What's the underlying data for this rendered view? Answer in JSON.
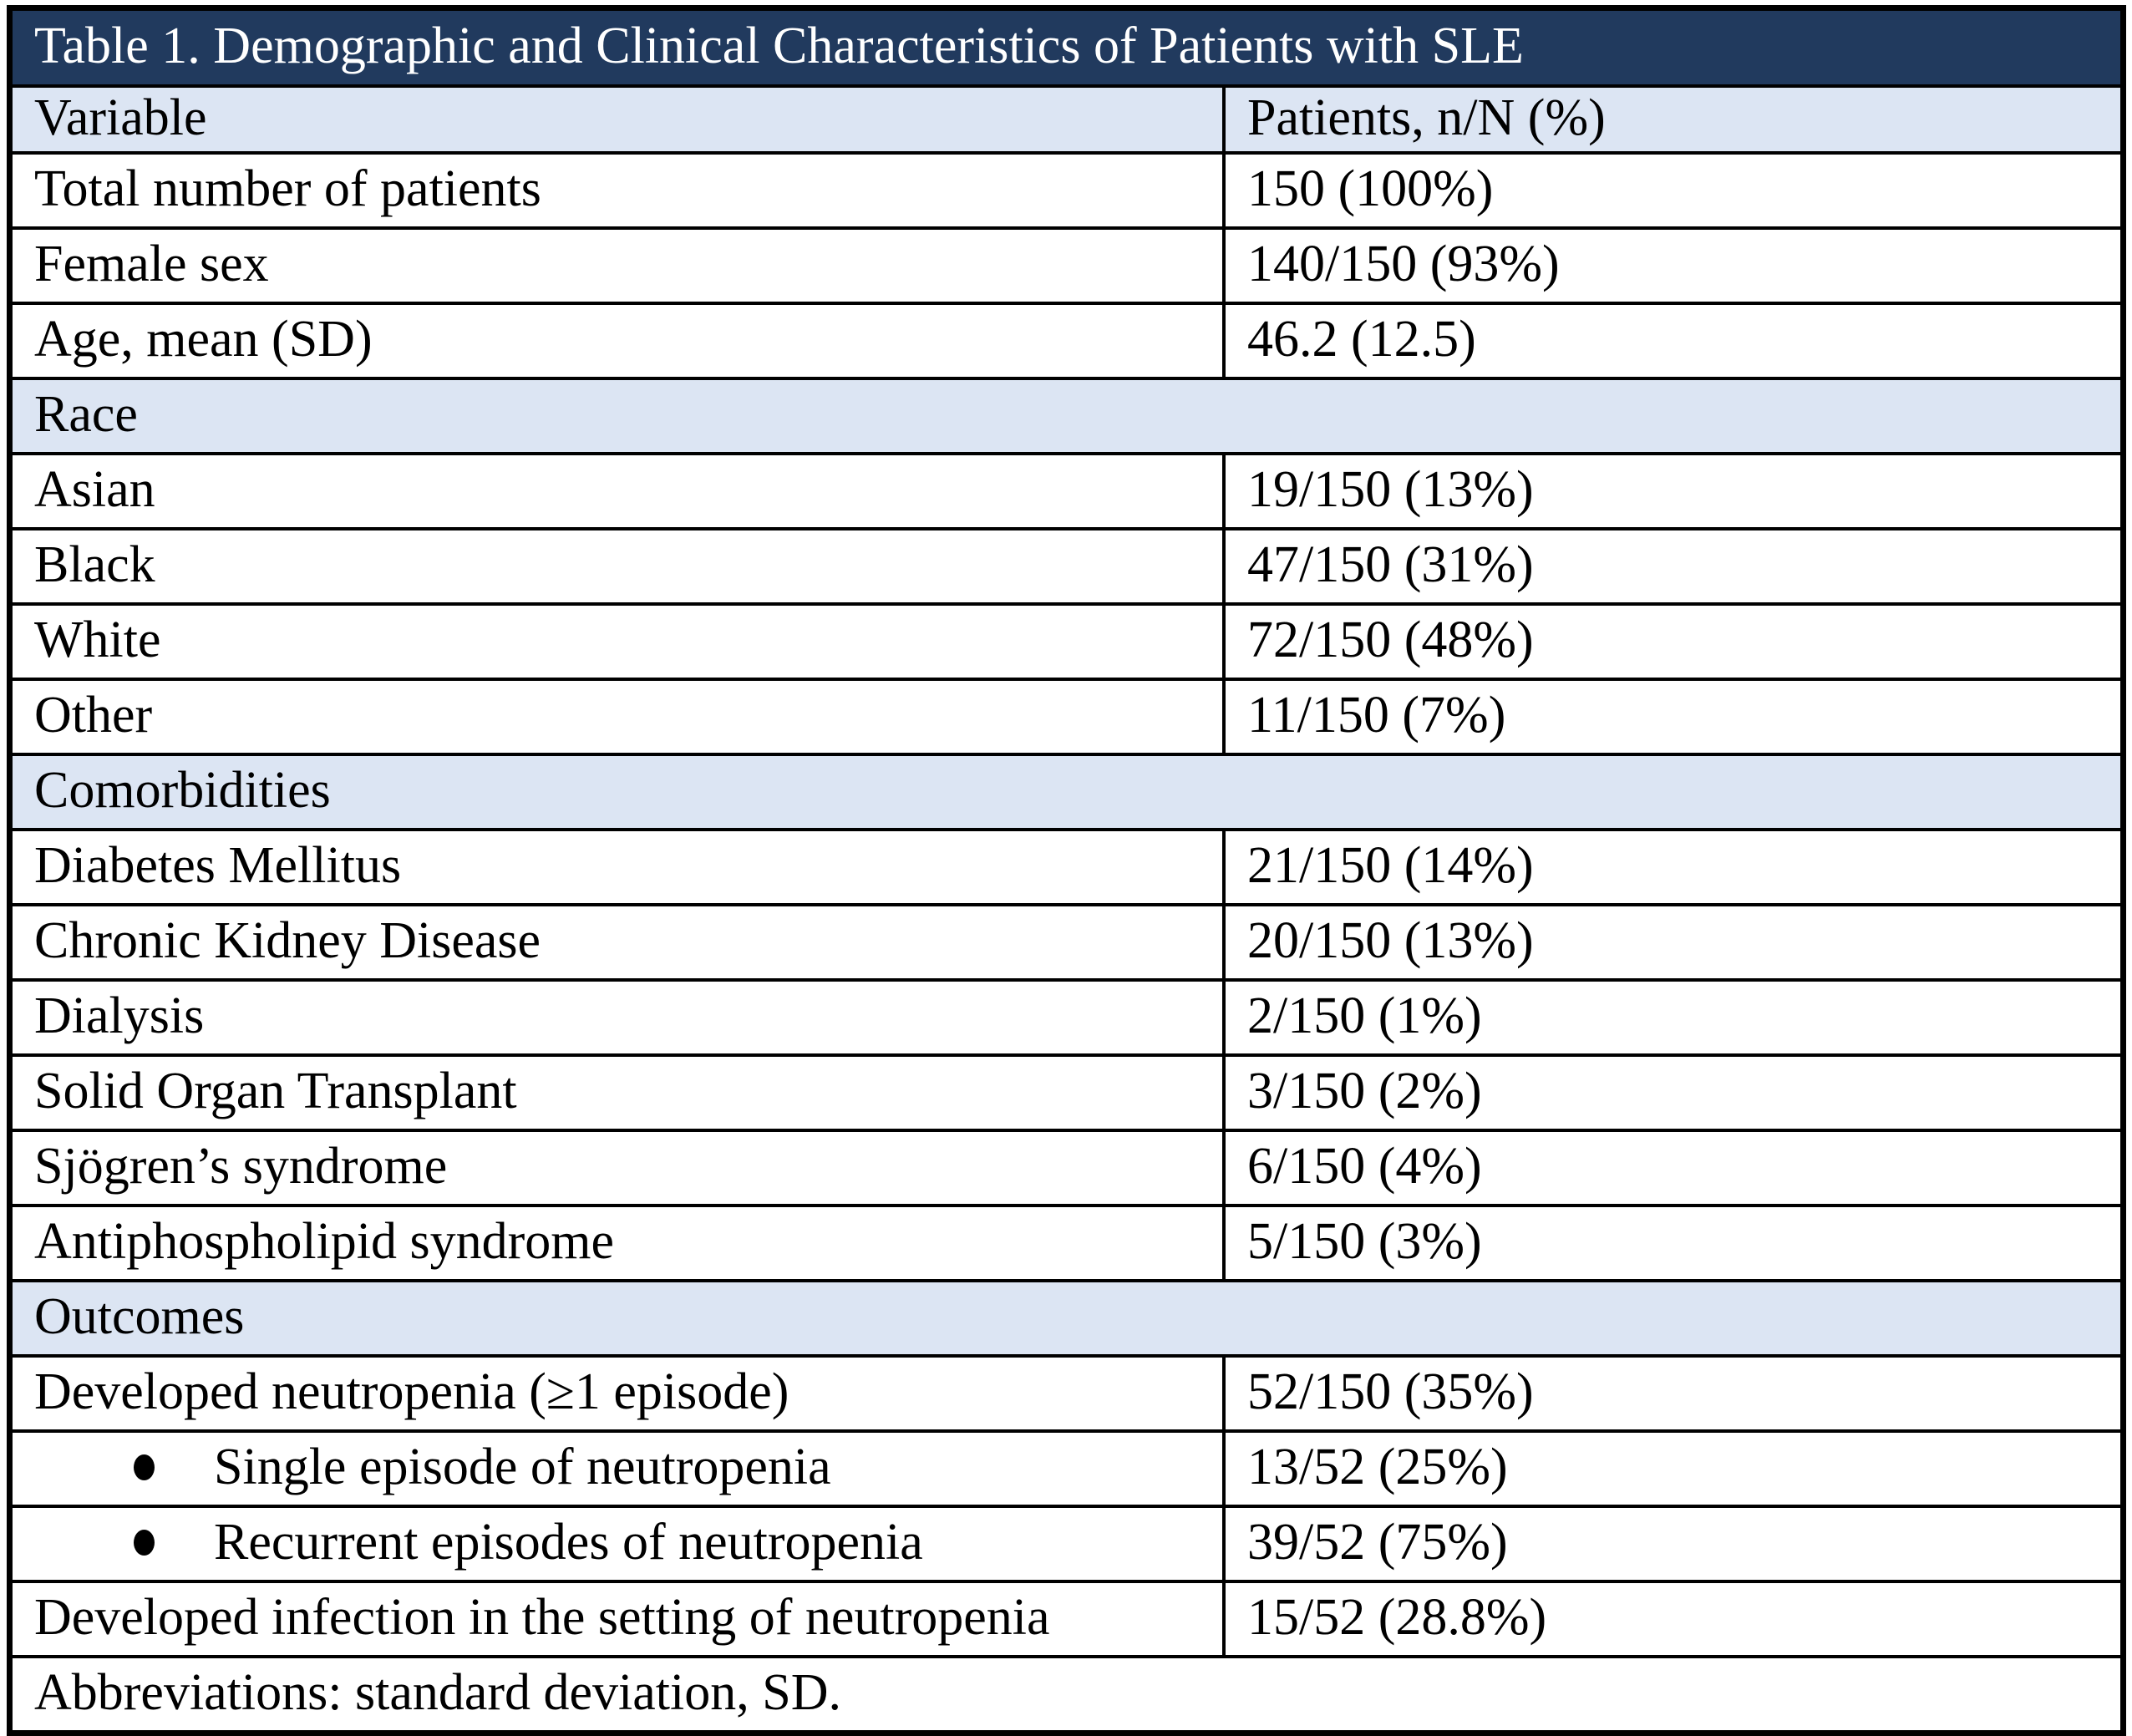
{
  "table": {
    "title": "Table 1. Demographic and Clinical Characteristics of Patients with SLE",
    "columns": [
      "Variable",
      "Patients, n/N (%)"
    ],
    "rows": [
      {
        "type": "data",
        "label": "Total number of patients",
        "value": "150 (100%)"
      },
      {
        "type": "data",
        "label": "Female sex",
        "value": "140/150 (93%)"
      },
      {
        "type": "data",
        "label": "Age, mean (SD)",
        "value": "46.2 (12.5)"
      },
      {
        "type": "section",
        "label": "Race"
      },
      {
        "type": "data",
        "label": "Asian",
        "value": "19/150 (13%)"
      },
      {
        "type": "data",
        "label": "Black",
        "value": "47/150 (31%)"
      },
      {
        "type": "data",
        "label": "White",
        "value": "72/150 (48%)"
      },
      {
        "type": "data",
        "label": "Other",
        "value": "11/150 (7%)"
      },
      {
        "type": "section",
        "label": "Comorbidities"
      },
      {
        "type": "data",
        "label": "Diabetes Mellitus",
        "value": "21/150 (14%)"
      },
      {
        "type": "data",
        "label": "Chronic Kidney Disease",
        "value": "20/150 (13%)"
      },
      {
        "type": "data",
        "label": "Dialysis",
        "value": "2/150 (1%)"
      },
      {
        "type": "data",
        "label": "Solid Organ Transplant",
        "value": "3/150 (2%)"
      },
      {
        "type": "data",
        "label": "Sjögren’s syndrome",
        "value": "6/150 (4%)"
      },
      {
        "type": "data",
        "label": "Antiphospholipid syndrome",
        "value": "5/150 (3%)"
      },
      {
        "type": "section",
        "label": "Outcomes"
      },
      {
        "type": "data",
        "label": "Developed neutropenia (≥1 episode)",
        "value": "52/150 (35%)"
      },
      {
        "type": "data",
        "bullet": true,
        "label": "Single episode of neutropenia",
        "value": "13/52 (25%)"
      },
      {
        "type": "data",
        "bullet": true,
        "label": "Recurrent episodes of neutropenia",
        "value": "39/52 (75%)"
      },
      {
        "type": "data",
        "label": "Developed infection in the setting of neutropenia",
        "value": "15/52 (28.8%)"
      },
      {
        "type": "footer",
        "label": "Abbreviations: standard deviation, SD."
      }
    ],
    "colors": {
      "title_background": "#213A5E",
      "title_text": "#FFFFFF",
      "section_background": "#DCE5F3",
      "border": "#000000",
      "body_text": "#000000"
    }
  }
}
